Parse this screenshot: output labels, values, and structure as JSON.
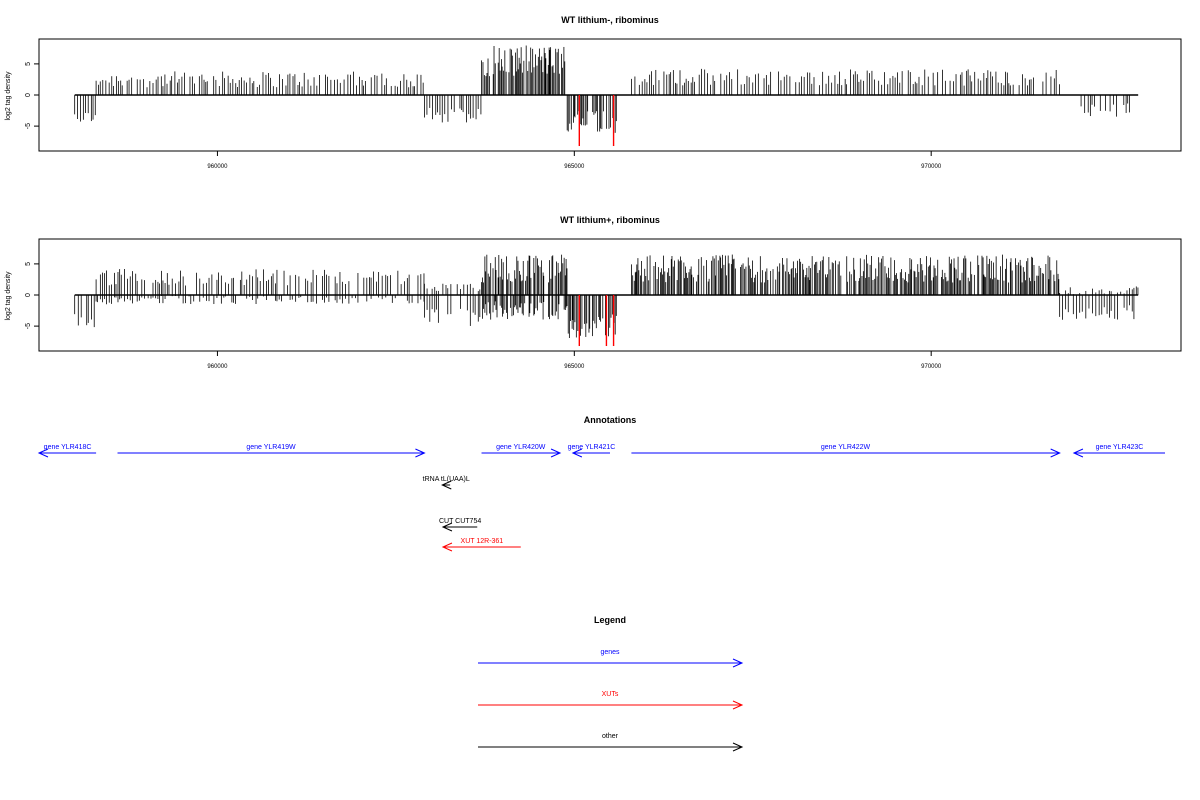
{
  "colors": {
    "gene": "#0000ff",
    "xut": "#ff0000",
    "other": "#000000",
    "highlight": "#ff0000",
    "axis": "#000000"
  },
  "chart_data": [
    {
      "type": "bar",
      "title": "WT lithium-, ribominus",
      "ylabel": "log2 tag density",
      "xlim": [
        957500,
        973500
      ],
      "ylim": [
        -9,
        9
      ],
      "xticks": [
        960000,
        965000,
        970000
      ],
      "xtick_labels": [
        "960000",
        "965000",
        "970000"
      ],
      "yticks": [
        -5,
        0,
        5
      ],
      "ytick_labels": [
        "-5",
        "0",
        "5"
      ],
      "highlight_positions": [
        965070,
        965550
      ],
      "regions": [
        {
          "start": 958000,
          "end": 958300,
          "pos": [
            0,
            0
          ],
          "neg": [
            2.5,
            4.5
          ]
        },
        {
          "start": 958300,
          "end": 962900,
          "pos": [
            1.2,
            3.8
          ],
          "neg": [
            0,
            0
          ]
        },
        {
          "start": 962900,
          "end": 963700,
          "pos": [
            0,
            0
          ],
          "neg": [
            2,
            4.5
          ]
        },
        {
          "start": 963700,
          "end": 964900,
          "pos": [
            3,
            8
          ],
          "neg": [
            0,
            0
          ]
        },
        {
          "start": 964900,
          "end": 965600,
          "pos": [
            0,
            0
          ],
          "neg": [
            2.5,
            6.5
          ]
        },
        {
          "start": 965800,
          "end": 971800,
          "pos": [
            1.5,
            4.2
          ],
          "neg": [
            0,
            0
          ]
        },
        {
          "start": 972100,
          "end": 972800,
          "pos": [
            0,
            0
          ],
          "neg": [
            1.2,
            3.5
          ]
        }
      ]
    },
    {
      "type": "bar",
      "title": "WT lithium+, ribominus",
      "ylabel": "log2 tag density",
      "xlim": [
        957500,
        973500
      ],
      "ylim": [
        -9,
        9
      ],
      "xticks": [
        960000,
        965000,
        970000
      ],
      "xtick_labels": [
        "960000",
        "965000",
        "970000"
      ],
      "yticks": [
        -5,
        0,
        5
      ],
      "ytick_labels": [
        "-5",
        "0",
        "5"
      ],
      "highlight_positions": [
        965070,
        965450,
        965550
      ],
      "regions": [
        {
          "start": 958000,
          "end": 958300,
          "pos": [
            0,
            0
          ],
          "neg": [
            2.5,
            5.5
          ]
        },
        {
          "start": 958300,
          "end": 962900,
          "pos": [
            1.5,
            4.2
          ],
          "neg": [
            0,
            1.5
          ]
        },
        {
          "start": 962900,
          "end": 963700,
          "pos": [
            0.5,
            2
          ],
          "neg": [
            2,
            5
          ]
        },
        {
          "start": 963700,
          "end": 964900,
          "pos": [
            2,
            6.5
          ],
          "neg": [
            1,
            4
          ]
        },
        {
          "start": 964900,
          "end": 965600,
          "pos": [
            0,
            0
          ],
          "neg": [
            3,
            7
          ]
        },
        {
          "start": 965800,
          "end": 971800,
          "pos": [
            2,
            6.5
          ],
          "neg": [
            0,
            0
          ]
        },
        {
          "start": 971800,
          "end": 972900,
          "pos": [
            0,
            1.5
          ],
          "neg": [
            1.5,
            4
          ]
        }
      ]
    }
  ],
  "annotations": {
    "title": "Annotations",
    "features": [
      {
        "label": "gene YLR418C",
        "kind": "gene",
        "start": 957500,
        "end": 958300,
        "strand": "-",
        "row": 0
      },
      {
        "label": "gene YLR419W",
        "kind": "gene",
        "start": 958600,
        "end": 962900,
        "strand": "+",
        "row": 0
      },
      {
        "label": "gene YLR420W",
        "kind": "gene",
        "start": 963700,
        "end": 964800,
        "strand": "+",
        "row": 0
      },
      {
        "label": "gene YLR421C",
        "kind": "gene",
        "start": 964980,
        "end": 965500,
        "strand": "-",
        "row": 0
      },
      {
        "label": "gene YLR422W",
        "kind": "gene",
        "start": 965800,
        "end": 971800,
        "strand": "+",
        "row": 0
      },
      {
        "label": "gene YLR423C",
        "kind": "gene",
        "start": 972000,
        "end": 973300,
        "strand": "-",
        "row": 0
      },
      {
        "label": "tRNA tL(UAA)L",
        "kind": "other",
        "start": 963150,
        "end": 963260,
        "strand": "-",
        "row": 1
      },
      {
        "label": "CUT CUT754",
        "kind": "other",
        "start": 963160,
        "end": 963640,
        "strand": "-",
        "row": 2
      },
      {
        "label": "XUT 12R-361",
        "kind": "xut",
        "start": 963160,
        "end": 964250,
        "strand": "-",
        "row": 3
      }
    ]
  },
  "legend": {
    "title": "Legend",
    "items": [
      {
        "label": "genes",
        "kind": "gene"
      },
      {
        "label": "XUTs",
        "kind": "xut"
      },
      {
        "label": "other",
        "kind": "other"
      }
    ]
  }
}
